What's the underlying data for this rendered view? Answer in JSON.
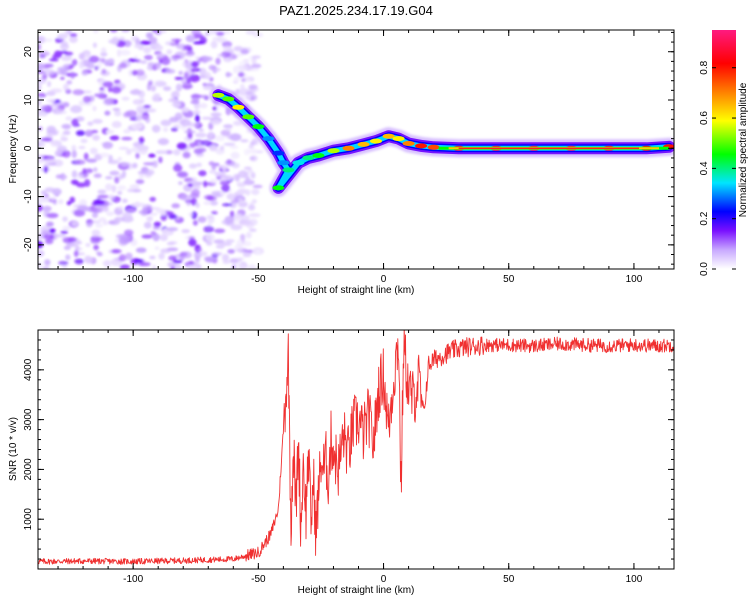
{
  "title": "PAZ1.2025.234.17.19.G04",
  "chart_data": [
    {
      "type": "heatmap",
      "title": "PAZ1.2025.234.17.19.G04",
      "xlabel": "Height of straight line (km)",
      "ylabel": "Frequency (Hz)",
      "xlim": [
        -138,
        116
      ],
      "ylim": [
        -25,
        24.5
      ],
      "xticks": [
        "-100",
        "-50",
        "0",
        "50",
        "100"
      ],
      "xtick_values": [
        -100,
        -50,
        0,
        50,
        100
      ],
      "yticks": [
        "20",
        "10",
        "0",
        "-10",
        "-20"
      ],
      "ytick_values": [
        20,
        10,
        0,
        -10,
        -20
      ],
      "ridge": [
        {
          "x": -66,
          "y": 11.0,
          "a": 0.55
        },
        {
          "x": -62,
          "y": 10.2,
          "a": 0.5
        },
        {
          "x": -58,
          "y": 8.5,
          "a": 0.6
        },
        {
          "x": -54,
          "y": 6.5,
          "a": 0.5
        },
        {
          "x": -50,
          "y": 4.5,
          "a": 0.45
        },
        {
          "x": -46,
          "y": 2.0,
          "a": 0.3
        },
        {
          "x": -42,
          "y": -1.0,
          "a": 0.25
        },
        {
          "x": -40,
          "y": -3.0,
          "a": 0.3
        },
        {
          "x": -38,
          "y": -4.5,
          "a": 0.4
        },
        {
          "x": -42,
          "y": -8.2,
          "a": 0.45
        },
        {
          "x": -34,
          "y": -3.0,
          "a": 0.35
        },
        {
          "x": -30,
          "y": -2.0,
          "a": 0.4
        },
        {
          "x": -26,
          "y": -1.5,
          "a": 0.45
        },
        {
          "x": -20,
          "y": -0.5,
          "a": 0.55
        },
        {
          "x": -14,
          "y": 0.0,
          "a": 0.7
        },
        {
          "x": -8,
          "y": 0.8,
          "a": 0.65
        },
        {
          "x": -3,
          "y": 1.5,
          "a": 0.6
        },
        {
          "x": 2,
          "y": 2.5,
          "a": 0.65
        },
        {
          "x": 6,
          "y": 2.0,
          "a": 0.6
        },
        {
          "x": 10,
          "y": 1.0,
          "a": 0.7
        },
        {
          "x": 15,
          "y": 0.5,
          "a": 0.8
        },
        {
          "x": 20,
          "y": 0.2,
          "a": 0.75
        },
        {
          "x": 30,
          "y": 0.0,
          "a": 0.9
        },
        {
          "x": 45,
          "y": 0.0,
          "a": 0.9
        },
        {
          "x": 60,
          "y": 0.0,
          "a": 0.92
        },
        {
          "x": 75,
          "y": 0.0,
          "a": 0.92
        },
        {
          "x": 90,
          "y": 0.0,
          "a": 0.9
        },
        {
          "x": 105,
          "y": 0.0,
          "a": 0.85
        },
        {
          "x": 114,
          "y": 0.3,
          "a": 0.8
        }
      ],
      "noise_region": {
        "x_from": -138,
        "x_to": -50,
        "y_from": -25,
        "y_to": 24.5,
        "amplitude_range": [
          0.0,
          0.15
        ]
      }
    },
    {
      "type": "line",
      "xlabel": "Height of straight line (km)",
      "ylabel": "SNR (10 * v/v)",
      "xlim": [
        -138,
        116
      ],
      "ylim": [
        0,
        4800
      ],
      "xticks": [
        "-100",
        "-50",
        "0",
        "50",
        "100"
      ],
      "xtick_values": [
        -100,
        -50,
        0,
        50,
        100
      ],
      "yticks": [
        "1000",
        "2000",
        "3000",
        "4000"
      ],
      "ytick_values": [
        1000,
        2000,
        3000,
        4000
      ],
      "series": [
        {
          "name": "SNR",
          "color": "#f03030",
          "x": [
            -138,
            -120,
            -100,
            -80,
            -60,
            -50,
            -45,
            -42,
            -40,
            -38,
            -37,
            -36,
            -35,
            -34,
            -33,
            -32,
            -31,
            -30,
            -29,
            -28,
            -27,
            -26,
            -25,
            -24,
            -23,
            -22,
            -21,
            -20,
            -18,
            -16,
            -14,
            -12,
            -10,
            -8,
            -6,
            -4,
            -2,
            0,
            2,
            4,
            6,
            7,
            8,
            10,
            12,
            14,
            16,
            18,
            20,
            24,
            28,
            32,
            40,
            50,
            60,
            70,
            80,
            90,
            100,
            110,
            116
          ],
          "y": [
            150,
            160,
            150,
            170,
            200,
            330,
            700,
            1200,
            2800,
            4300,
            900,
            2500,
            1200,
            2600,
            800,
            2200,
            1100,
            2400,
            900,
            1800,
            700,
            1500,
            2200,
            2000,
            2200,
            1800,
            2600,
            2400,
            2000,
            2700,
            2300,
            2900,
            3000,
            2700,
            3100,
            2500,
            3600,
            3900,
            2800,
            3800,
            4650,
            1500,
            4500,
            3600,
            3400,
            3800,
            3100,
            4100,
            4200,
            4300,
            4400,
            4450,
            4500,
            4500,
            4480,
            4520,
            4500,
            4480,
            4500,
            4480,
            4500
          ]
        }
      ]
    }
  ],
  "colorbar": {
    "label": "Normalized spectral amplitude",
    "range": [
      0,
      0.95
    ],
    "ticks": [
      "0.0",
      "0.2",
      "0.4",
      "0.6",
      "0.8"
    ],
    "tick_values": [
      0.0,
      0.2,
      0.4,
      0.6,
      0.8
    ],
    "colors": [
      "#ffffff",
      "#c8a8ff",
      "#7a10ff",
      "#0000ff",
      "#00e5ff",
      "#00ff00",
      "#ffff00",
      "#ff8000",
      "#ff0000",
      "#ff1a80"
    ]
  }
}
